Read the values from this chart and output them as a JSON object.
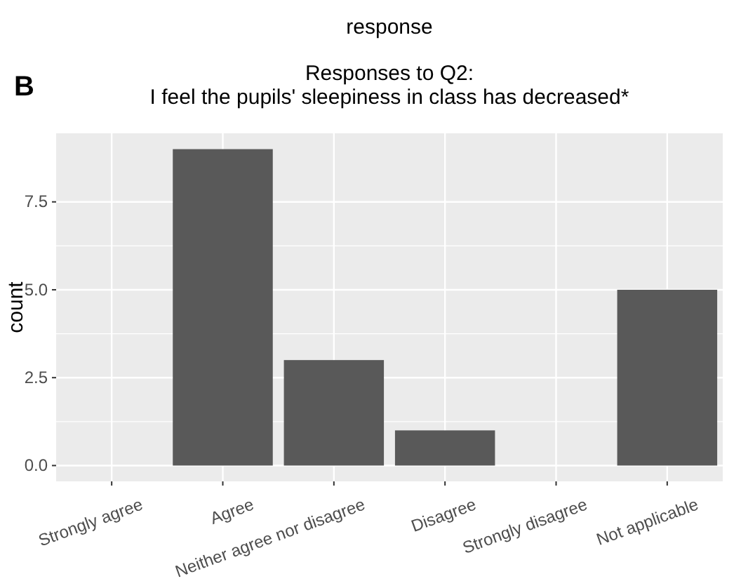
{
  "chart_data": {
    "type": "bar",
    "title": "Responses to Q2:\nI feel the pupils' sleepiness in class has decreased*",
    "xlabel": "response",
    "ylabel": "count",
    "categories": [
      "Strongly agree",
      "Agree",
      "Neither agree nor disagree",
      "Disagree",
      "Strongly disagree",
      "Not applicable"
    ],
    "values": [
      0,
      9,
      3,
      1,
      0,
      5
    ],
    "color": "#595959",
    "ylim": [
      -0.45,
      9.45
    ],
    "yticks": [
      {
        "value": 0,
        "label": "0.0"
      },
      {
        "value": 2.5,
        "label": "2.5"
      },
      {
        "value": 5,
        "label": "5.0"
      },
      {
        "value": 7.5,
        "label": "7.5"
      }
    ],
    "grid": true,
    "annotations": [
      "B"
    ]
  }
}
